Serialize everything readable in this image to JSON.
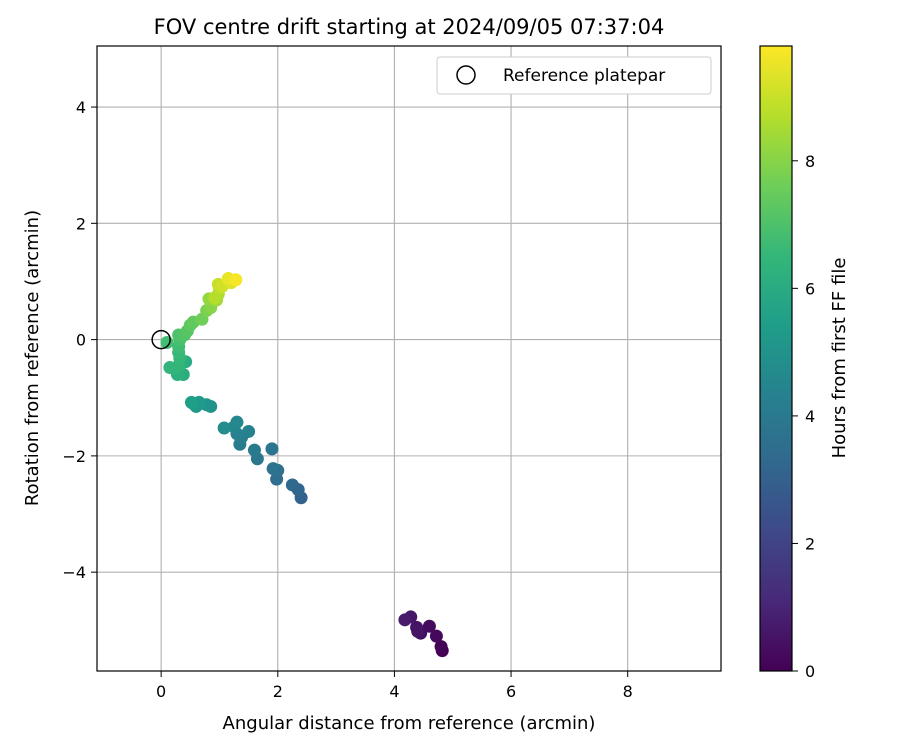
{
  "chart_data": {
    "type": "scatter",
    "title": "FOV centre drift starting at 2024/09/05 07:37:04",
    "xlabel": "Angular distance from reference (arcmin)",
    "ylabel": "Rotation from reference (arcmin)",
    "xlim": [
      -1.1,
      9.6
    ],
    "ylim": [
      -5.7,
      5.05
    ],
    "xticks": [
      0,
      2,
      4,
      6,
      8
    ],
    "xtick_labels": [
      "0",
      "2",
      "4",
      "6",
      "8"
    ],
    "yticks": [
      -4,
      -2,
      0,
      2,
      4
    ],
    "ytick_labels": [
      "−4",
      "−2",
      "0",
      "2",
      "4"
    ],
    "grid": true,
    "legend": {
      "position": "top-right",
      "entries": [
        {
          "label": "Reference platepar",
          "marker": "open-circle"
        }
      ]
    },
    "reference_point": {
      "x": 0,
      "y": 0
    },
    "colorbar": {
      "label": "Hours from first FF file",
      "range": [
        0,
        9.8
      ],
      "ticks": [
        0,
        2,
        4,
        6,
        8
      ],
      "tick_labels": [
        "0",
        "2",
        "4",
        "6",
        "8"
      ],
      "colormap": "viridis",
      "stops": [
        "#440154",
        "#482878",
        "#3e4989",
        "#31688e",
        "#26828e",
        "#1f9e89",
        "#35b779",
        "#6ece58",
        "#b5de2b",
        "#fde725"
      ]
    },
    "points": [
      {
        "x": 4.82,
        "y": -5.35,
        "h": 0.0
      },
      {
        "x": 4.8,
        "y": -5.28,
        "h": 0.1
      },
      {
        "x": 4.72,
        "y": -5.1,
        "h": 0.2
      },
      {
        "x": 4.6,
        "y": -4.93,
        "h": 0.3
      },
      {
        "x": 4.45,
        "y": -5.05,
        "h": 0.4
      },
      {
        "x": 4.38,
        "y": -4.95,
        "h": 0.5
      },
      {
        "x": 4.4,
        "y": -5.02,
        "h": 0.55
      },
      {
        "x": 4.28,
        "y": -4.77,
        "h": 0.6
      },
      {
        "x": 4.18,
        "y": -4.82,
        "h": 0.7
      },
      {
        "x": 2.4,
        "y": -2.72,
        "h": 3.1
      },
      {
        "x": 2.35,
        "y": -2.58,
        "h": 3.2
      },
      {
        "x": 2.25,
        "y": -2.5,
        "h": 3.3
      },
      {
        "x": 1.98,
        "y": -2.4,
        "h": 3.5
      },
      {
        "x": 2.0,
        "y": -2.25,
        "h": 3.6
      },
      {
        "x": 1.92,
        "y": -2.22,
        "h": 3.7
      },
      {
        "x": 1.9,
        "y": -1.88,
        "h": 3.8
      },
      {
        "x": 1.65,
        "y": -2.05,
        "h": 3.9
      },
      {
        "x": 1.6,
        "y": -1.9,
        "h": 4.0
      },
      {
        "x": 1.35,
        "y": -1.8,
        "h": 4.1
      },
      {
        "x": 1.38,
        "y": -1.68,
        "h": 4.2
      },
      {
        "x": 1.3,
        "y": -1.62,
        "h": 4.3
      },
      {
        "x": 1.5,
        "y": -1.58,
        "h": 4.4
      },
      {
        "x": 1.25,
        "y": -1.5,
        "h": 4.5
      },
      {
        "x": 1.3,
        "y": -1.42,
        "h": 4.6
      },
      {
        "x": 1.08,
        "y": -1.52,
        "h": 4.8
      },
      {
        "x": 0.85,
        "y": -1.15,
        "h": 5.0
      },
      {
        "x": 0.78,
        "y": -1.12,
        "h": 5.1
      },
      {
        "x": 0.6,
        "y": -1.15,
        "h": 5.2
      },
      {
        "x": 0.65,
        "y": -1.08,
        "h": 5.3
      },
      {
        "x": 0.55,
        "y": -1.1,
        "h": 5.4
      },
      {
        "x": 0.52,
        "y": -1.08,
        "h": 5.5
      },
      {
        "x": 0.42,
        "y": -0.38,
        "h": 6.0
      },
      {
        "x": 0.38,
        "y": -0.6,
        "h": 6.1
      },
      {
        "x": 0.28,
        "y": -0.6,
        "h": 6.2
      },
      {
        "x": 0.22,
        "y": -0.5,
        "h": 6.3
      },
      {
        "x": 0.15,
        "y": -0.48,
        "h": 6.4
      },
      {
        "x": 0.3,
        "y": -0.45,
        "h": 6.45
      },
      {
        "x": 0.32,
        "y": -0.32,
        "h": 6.5
      },
      {
        "x": 0.3,
        "y": -0.22,
        "h": 6.6
      },
      {
        "x": 0.3,
        "y": -0.12,
        "h": 6.7
      },
      {
        "x": 0.1,
        "y": -0.05,
        "h": 6.8
      },
      {
        "x": 0.32,
        "y": 0.0,
        "h": 6.9
      },
      {
        "x": 0.3,
        "y": 0.08,
        "h": 7.0
      },
      {
        "x": 0.4,
        "y": 0.08,
        "h": 7.1
      },
      {
        "x": 0.45,
        "y": 0.15,
        "h": 7.2
      },
      {
        "x": 0.5,
        "y": 0.25,
        "h": 7.3
      },
      {
        "x": 0.55,
        "y": 0.3,
        "h": 7.4
      },
      {
        "x": 0.7,
        "y": 0.35,
        "h": 7.6
      },
      {
        "x": 0.78,
        "y": 0.5,
        "h": 7.8
      },
      {
        "x": 0.85,
        "y": 0.55,
        "h": 8.0
      },
      {
        "x": 0.82,
        "y": 0.7,
        "h": 8.2
      },
      {
        "x": 0.95,
        "y": 0.68,
        "h": 8.4
      },
      {
        "x": 0.98,
        "y": 0.78,
        "h": 8.6
      },
      {
        "x": 0.92,
        "y": 0.72,
        "h": 8.7
      },
      {
        "x": 1.0,
        "y": 0.88,
        "h": 8.8
      },
      {
        "x": 0.98,
        "y": 0.95,
        "h": 9.0
      },
      {
        "x": 1.05,
        "y": 0.92,
        "h": 9.1
      },
      {
        "x": 1.2,
        "y": 0.98,
        "h": 9.3
      },
      {
        "x": 1.15,
        "y": 1.05,
        "h": 9.5
      },
      {
        "x": 1.28,
        "y": 1.03,
        "h": 9.7
      }
    ]
  }
}
